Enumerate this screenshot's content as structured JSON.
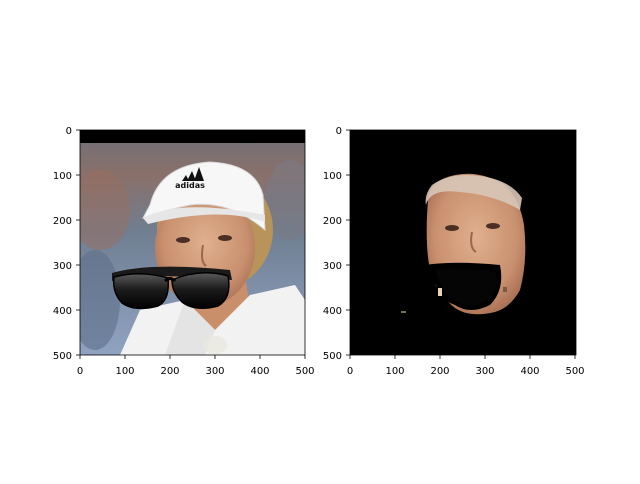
{
  "figure": {
    "background": "#ffffff",
    "panels": [
      {
        "id": "left",
        "content": "tennis player photo with sunglasses overlay",
        "x_ticks": [
          "0",
          "100",
          "200",
          "300",
          "400",
          "500"
        ],
        "y_ticks": [
          "0",
          "100",
          "200",
          "300",
          "400",
          "500"
        ]
      },
      {
        "id": "right",
        "content": "masked face region on black background",
        "x_ticks": [
          "0",
          "100",
          "200",
          "300",
          "400",
          "500"
        ],
        "y_ticks": [
          "0",
          "100",
          "200",
          "300",
          "400",
          "500"
        ]
      }
    ],
    "visor_logo_text": "adidas"
  }
}
